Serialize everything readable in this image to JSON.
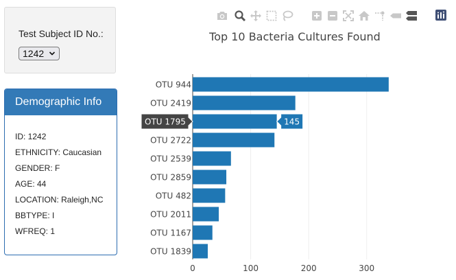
{
  "selector": {
    "label": "Test Subject ID No.:",
    "selected": "1242",
    "chevron": "⌄"
  },
  "demographics": {
    "title": "Demographic Info",
    "rows": [
      "ID: 1242",
      "ETHNICITY: Caucasian",
      "GENDER: F",
      "AGE: 44",
      "LOCATION: Raleigh,NC",
      "BBTYPE: I",
      "WFREQ: 1"
    ]
  },
  "modebar": {
    "icons": [
      "camera-icon",
      "zoom-icon",
      "pan-icon",
      "box-select-icon",
      "lasso-select-icon",
      "zoom-in-icon",
      "zoom-out-icon",
      "autoscale-icon",
      "reset-axes-icon",
      "spike-lines-icon",
      "hover-closest-icon",
      "hover-compare-icon",
      "plotly-logo-icon"
    ],
    "colors": {
      "inactive": "#c8c8c8",
      "active": "#555555",
      "logo_bg": "#3f4f75"
    }
  },
  "chart_data": {
    "type": "bar",
    "orientation": "horizontal",
    "title": "Top 10 Bacteria Cultures Found",
    "categories": [
      "OTU 944",
      "OTU 2419",
      "OTU 1795",
      "OTU 2722",
      "OTU 2539",
      "OTU 2859",
      "OTU 482",
      "OTU 2011",
      "OTU 1167",
      "OTU 1839"
    ],
    "values": [
      338,
      177,
      145,
      141,
      66,
      58,
      56,
      45,
      34,
      26
    ],
    "xlim": [
      0,
      350
    ],
    "xticks": [
      0,
      100,
      200,
      300
    ],
    "grid": true,
    "bar_color": "#1f77b4",
    "hover": {
      "category": "OTU 1795",
      "value": "145"
    }
  }
}
